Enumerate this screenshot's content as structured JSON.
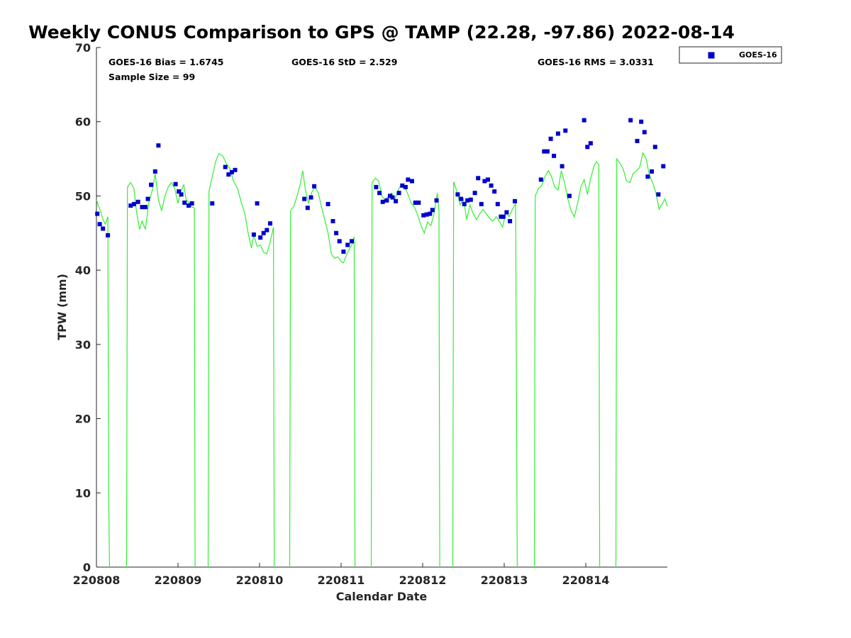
{
  "chart_data": {
    "type": "scatter",
    "title": "Weekly CONUS Comparison to GPS @ TAMP (22.28, -97.86) 2022-08-14",
    "xlabel": "Calendar Date",
    "ylabel": "TPW (mm)",
    "xlim": [
      220808,
      220815
    ],
    "ylim": [
      0,
      70
    ],
    "x_ticks": [
      220808,
      220809,
      220810,
      220811,
      220812,
      220813,
      220814
    ],
    "x_tick_labels": [
      "220808",
      "220809",
      "220810",
      "220811",
      "220812",
      "220813",
      "220814"
    ],
    "y_ticks": [
      0,
      10,
      20,
      30,
      40,
      50,
      60,
      70
    ],
    "y_tick_labels": [
      "0",
      "10",
      "20",
      "30",
      "40",
      "50",
      "60",
      "70"
    ],
    "grid": false,
    "legend": {
      "position": "outside-top-right",
      "entries": [
        "GOES-16"
      ]
    },
    "stats": {
      "bias": "GOES-16 Bias = 1.6745",
      "std": "GOES-16 StD = 2.529",
      "rms": "GOES-16 RMS = 3.0331",
      "sample": "Sample Size = 99"
    },
    "colors": {
      "goes": "#0000cc",
      "gps": "#33ee33"
    },
    "series": [
      {
        "name": "GOES-16",
        "kind": "scatter",
        "x": [
          220808.01,
          220808.04,
          220808.08,
          220808.14,
          220808.42,
          220808.46,
          220808.51,
          220808.56,
          220808.6,
          220808.63,
          220808.67,
          220808.72,
          220808.76,
          220808.97,
          220809.01,
          220809.04,
          220809.08,
          220809.13,
          220809.17,
          220809.42,
          220809.58,
          220809.62,
          220809.66,
          220809.7,
          220809.93,
          220809.97,
          220810.01,
          220810.05,
          220810.09,
          220810.13,
          220810.55,
          220810.59,
          220810.63,
          220810.67,
          220810.84,
          220810.9,
          220810.94,
          220810.98,
          220811.03,
          220811.08,
          220811.13,
          220811.43,
          220811.47,
          220811.51,
          220811.56,
          220811.6,
          220811.63,
          220811.67,
          220811.71,
          220811.75,
          220811.79,
          220811.82,
          220811.87,
          220811.91,
          220811.95,
          220812.01,
          220812.05,
          220812.09,
          220812.12,
          220812.17,
          220812.43,
          220812.47,
          220812.51,
          220812.55,
          220812.59,
          220812.64,
          220812.68,
          220812.72,
          220812.76,
          220812.8,
          220812.84,
          220812.88,
          220812.92,
          220812.96,
          220812.99,
          220813.03,
          220813.07,
          220813.13,
          220813.45,
          220813.49,
          220813.53,
          220813.57,
          220813.61,
          220813.66,
          220813.71,
          220813.75,
          220813.8,
          220813.98,
          220814.02,
          220814.06,
          220814.55,
          220814.63,
          220814.68,
          220814.72,
          220814.76,
          220814.81,
          220814.85,
          220814.89,
          220814.95
        ],
        "y": [
          47.6,
          46.2,
          45.6,
          44.7,
          48.7,
          48.9,
          49.2,
          48.5,
          48.5,
          49.6,
          51.5,
          53.3,
          56.8,
          51.6,
          50.6,
          50.2,
          49.1,
          48.7,
          49.0,
          49.0,
          53.9,
          52.9,
          53.2,
          53.5,
          44.8,
          49.0,
          44.4,
          45.0,
          45.4,
          46.3,
          49.6,
          48.4,
          49.8,
          51.3,
          48.9,
          46.6,
          45.0,
          43.9,
          42.5,
          43.4,
          43.9,
          51.2,
          50.4,
          49.2,
          49.4,
          50.0,
          49.8,
          49.3,
          50.4,
          51.4,
          51.2,
          52.2,
          52.0,
          49.1,
          49.1,
          47.4,
          47.5,
          47.6,
          48.1,
          49.4,
          50.2,
          49.6,
          48.9,
          49.4,
          49.5,
          50.4,
          52.4,
          48.9,
          52.0,
          52.2,
          51.4,
          50.6,
          48.9,
          47.2,
          47.2,
          47.8,
          46.6,
          49.3,
          52.2,
          56.0,
          56.0,
          57.7,
          55.4,
          58.4,
          54.0,
          58.8,
          50.0,
          60.2,
          56.6,
          57.1,
          60.2,
          57.4,
          60.0,
          58.6,
          52.6,
          53.3,
          56.6,
          50.2,
          54.0
        ]
      },
      {
        "name": "GPS",
        "kind": "line",
        "segments": [
          {
            "x": [
              220808.0,
              220808.02,
              220808.05,
              220808.08,
              220808.11,
              220808.14,
              220808.15,
              220808.16
            ],
            "y": [
              49.5,
              48.8,
              48.0,
              46.8,
              46.2,
              47.2,
              10.0,
              0.0
            ]
          },
          {
            "x": [
              220808.37,
              220808.38,
              220808.42,
              220808.46,
              220808.49,
              220808.53,
              220808.56,
              220808.6,
              220808.64,
              220808.69,
              220808.72,
              220808.76,
              220808.8,
              220808.84,
              220808.88,
              220808.92,
              220808.96,
              220809.0,
              220809.03,
              220809.07,
              220809.1,
              220809.14,
              220809.17,
              220809.2,
              220809.21
            ],
            "y": [
              0.0,
              51.2,
              51.8,
              51.0,
              48.0,
              45.5,
              46.6,
              45.5,
              49.0,
              51.0,
              53.0,
              49.5,
              48.0,
              50.0,
              51.2,
              51.8,
              51.0,
              49.0,
              50.5,
              51.5,
              49.5,
              49.0,
              48.5,
              48.4,
              0.0
            ]
          },
          {
            "x": [
              220809.37,
              220809.38,
              220809.42,
              220809.46,
              220809.5,
              220809.55,
              220809.6,
              220809.64,
              220809.68,
              220809.73,
              220809.78,
              220809.82,
              220809.86,
              220809.9,
              220809.93,
              220809.97,
              220810.01,
              220810.05,
              220810.09,
              220810.13,
              220810.17,
              220810.18
            ],
            "y": [
              0.0,
              50.6,
              52.6,
              54.6,
              55.7,
              55.4,
              54.2,
              53.6,
              52.0,
              51.0,
              49.0,
              47.6,
              45.0,
              43.0,
              44.7,
              43.2,
              43.4,
              42.4,
              42.2,
              43.8,
              45.8,
              0.0
            ]
          },
          {
            "x": [
              220810.37,
              220810.38,
              220810.42,
              220810.46,
              220810.5,
              220810.53,
              220810.56,
              220810.6,
              220810.64,
              220810.68,
              220810.72,
              220810.76,
              220810.8,
              220810.84,
              220810.88,
              220810.92,
              220810.96,
              220811.0,
              220811.03,
              220811.07,
              220811.1,
              220811.14,
              220811.16,
              220811.17
            ],
            "y": [
              0.0,
              48.0,
              48.6,
              50.0,
              51.6,
              53.4,
              51.0,
              49.0,
              50.5,
              51.2,
              50.4,
              48.5,
              46.8,
              45.0,
              42.2,
              41.6,
              41.8,
              41.2,
              41.0,
              42.2,
              42.8,
              43.6,
              44.5,
              0.0
            ]
          },
          {
            "x": [
              220811.37,
              220811.38,
              220811.42,
              220811.46,
              220811.5,
              220811.54,
              220811.58,
              220811.62,
              220811.66,
              220811.7,
              220811.74,
              220811.78,
              220811.82,
              220811.86,
              220811.9,
              220811.94,
              220811.98,
              220812.02,
              220812.06,
              220812.1,
              220812.14,
              220812.18,
              220812.2,
              220812.21
            ],
            "y": [
              0.0,
              51.8,
              52.4,
              52.0,
              50.0,
              49.4,
              50.0,
              50.4,
              49.6,
              50.8,
              51.6,
              51.2,
              50.2,
              49.0,
              48.5,
              47.4,
              46.0,
              45.0,
              46.5,
              46.0,
              47.6,
              50.4,
              48.0,
              0.0
            ]
          },
          {
            "x": [
              220812.37,
              220812.38,
              220812.42,
              220812.46,
              220812.5,
              220812.54,
              220812.58,
              220812.62,
              220812.66,
              220812.7,
              220812.74,
              220812.78,
              220812.82,
              220812.86,
              220812.9,
              220812.94,
              220812.98,
              220813.02,
              220813.06,
              220813.1,
              220813.14,
              220813.16
            ],
            "y": [
              0.0,
              51.9,
              50.6,
              48.8,
              49.6,
              46.8,
              48.8,
              47.6,
              46.8,
              47.6,
              48.2,
              47.6,
              47.0,
              46.6,
              47.2,
              46.6,
              45.8,
              47.8,
              47.2,
              48.2,
              49.0,
              0.0
            ]
          },
          {
            "x": [
              220813.37,
              220813.38,
              220813.42,
              220813.46,
              220813.5,
              220813.54,
              220813.58,
              220813.62,
              220813.66,
              220813.7,
              220813.74,
              220813.78,
              220813.82,
              220813.86,
              220813.9,
              220813.94,
              220813.98,
              220814.02,
              220814.06,
              220814.1,
              220814.13,
              220814.16,
              220814.17
            ],
            "y": [
              0.0,
              50.0,
              51.0,
              51.4,
              52.6,
              53.4,
              52.6,
              51.2,
              50.8,
              53.4,
              51.8,
              49.6,
              48.0,
              47.2,
              49.0,
              51.2,
              52.2,
              50.2,
              52.4,
              54.0,
              54.6,
              54.2,
              0.0
            ]
          },
          {
            "x": [
              220814.37,
              220814.38,
              220814.42,
              220814.46,
              220814.5,
              220814.54,
              220814.58,
              220814.62,
              220814.66,
              220814.7,
              220814.74,
              220814.78,
              220814.82,
              220814.86,
              220814.9,
              220814.94,
              220814.97,
              220815.0
            ],
            "y": [
              0.0,
              55.0,
              54.4,
              53.6,
              52.0,
              51.8,
              53.0,
              53.4,
              53.8,
              55.8,
              55.0,
              52.8,
              51.8,
              50.4,
              48.2,
              49.0,
              49.6,
              48.6
            ]
          }
        ]
      }
    ]
  }
}
